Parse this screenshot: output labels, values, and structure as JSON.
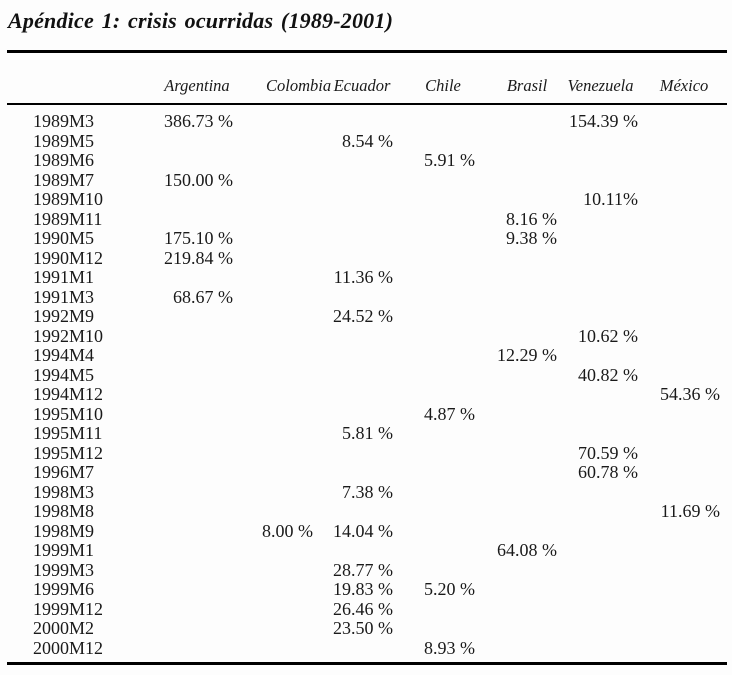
{
  "page": {
    "title": "Apéndice 1: crisis ocurridas (1989-2001)"
  },
  "colors": {
    "text": "#1a1a1a",
    "rule": "#000000",
    "background": "#fdfdfd"
  },
  "table": {
    "columns": [
      "",
      "Argentina",
      "Colombia",
      "Ecuador",
      "Chile",
      "Brasil",
      "Venezuela",
      "México"
    ],
    "rows": [
      [
        "1989M3",
        "386.73 %",
        "",
        "",
        "",
        "",
        "154.39 %",
        ""
      ],
      [
        "1989M5",
        "",
        "",
        "8.54 %",
        "",
        "",
        "",
        ""
      ],
      [
        "1989M6",
        "",
        "",
        "",
        "5.91 %",
        "",
        "",
        ""
      ],
      [
        "1989M7",
        "150.00 %",
        "",
        "",
        "",
        "",
        "",
        ""
      ],
      [
        "1989M10",
        "",
        "",
        "",
        "",
        "",
        "10.11%",
        ""
      ],
      [
        "1989M11",
        "",
        "",
        "",
        "",
        "8.16 %",
        "",
        ""
      ],
      [
        "1990M5",
        "175.10 %",
        "",
        "",
        "",
        "9.38 %",
        "",
        ""
      ],
      [
        "1990M12",
        "219.84 %",
        "",
        "",
        "",
        "",
        "",
        ""
      ],
      [
        "1991M1",
        "",
        "",
        "11.36 %",
        "",
        "",
        "",
        ""
      ],
      [
        "1991M3",
        "68.67 %",
        "",
        "",
        "",
        "",
        "",
        ""
      ],
      [
        "1992M9",
        "",
        "",
        "24.52 %",
        "",
        "",
        "",
        ""
      ],
      [
        "1992M10",
        "",
        "",
        "",
        "",
        "",
        "10.62 %",
        ""
      ],
      [
        "1994M4",
        "",
        "",
        "",
        "",
        "12.29 %",
        "",
        ""
      ],
      [
        "1994M5",
        "",
        "",
        "",
        "",
        "",
        "40.82 %",
        ""
      ],
      [
        "1994M12",
        "",
        "",
        "",
        "",
        "",
        "",
        "54.36 %"
      ],
      [
        "1995M10",
        "",
        "",
        "",
        "4.87 %",
        "",
        "",
        ""
      ],
      [
        "1995M11",
        "",
        "",
        "5.81 %",
        "",
        "",
        "",
        ""
      ],
      [
        "1995M12",
        "",
        "",
        "",
        "",
        "",
        "70.59 %",
        ""
      ],
      [
        "1996M7",
        "",
        "",
        "",
        "",
        "",
        "60.78 %",
        ""
      ],
      [
        "1998M3",
        "",
        "",
        "7.38 %",
        "",
        "",
        "",
        ""
      ],
      [
        "1998M8",
        "",
        "",
        "",
        "",
        "",
        "",
        "11.69 %"
      ],
      [
        "1998M9",
        "",
        "8.00 %",
        "14.04 %",
        "",
        "",
        "",
        ""
      ],
      [
        "1999M1",
        "",
        "",
        "",
        "",
        "64.08 %",
        "",
        ""
      ],
      [
        "1999M3",
        "",
        "",
        "28.77 %",
        "",
        "",
        "",
        ""
      ],
      [
        "1999M6",
        "",
        "",
        "19.83 %",
        "5.20 %",
        "",
        "",
        ""
      ],
      [
        "1999M12",
        "",
        "",
        "26.46 %",
        "",
        "",
        "",
        ""
      ],
      [
        "2000M2",
        "",
        "",
        "23.50 %",
        "",
        "",
        "",
        ""
      ],
      [
        "2000M12",
        "",
        "",
        "",
        "8.93 %",
        "",
        "",
        ""
      ]
    ]
  }
}
